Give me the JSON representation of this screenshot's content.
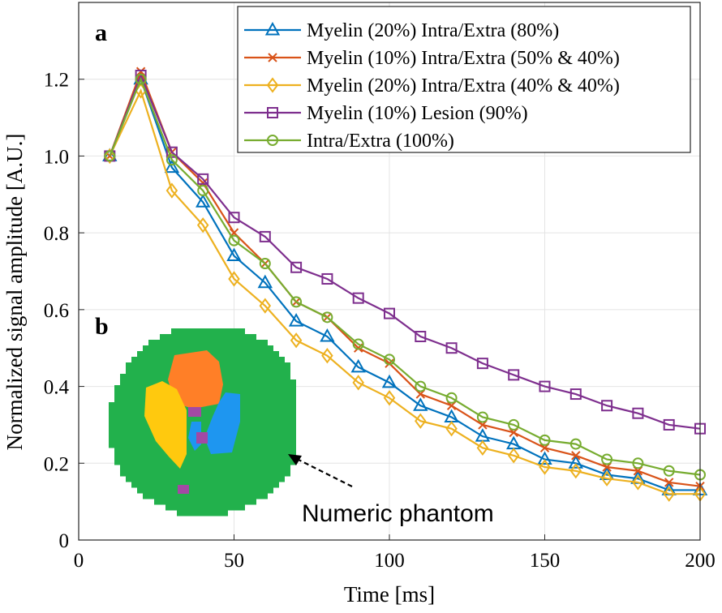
{
  "chart_data": {
    "type": "line",
    "xlabel": "Time [ms]",
    "ylabel": "Normalized signal amplitude [A.U.]",
    "xlim": [
      0,
      200
    ],
    "ylim": [
      0,
      1.4
    ],
    "xticks": [
      0,
      50,
      100,
      150,
      200
    ],
    "xtick_labels": [
      "0",
      "50",
      "100",
      "150",
      "200"
    ],
    "yticks": [
      0,
      0.2,
      0.4,
      0.6,
      0.8,
      1.0,
      1.2
    ],
    "ytick_labels": [
      "0",
      "0.2",
      "0.4",
      "0.6",
      "0.8",
      "1.0",
      "1.2"
    ],
    "grid": true,
    "legend_position": "top-right",
    "x": [
      10,
      20,
      30,
      40,
      50,
      60,
      70,
      80,
      90,
      100,
      110,
      120,
      130,
      140,
      150,
      160,
      170,
      180,
      190,
      200
    ],
    "series": [
      {
        "name": "Myelin (20%) Intra/Extra (80%)",
        "color": "#0072BD",
        "marker": "triangle",
        "values": [
          1.0,
          1.2,
          0.97,
          0.88,
          0.74,
          0.67,
          0.57,
          0.53,
          0.45,
          0.41,
          0.35,
          0.32,
          0.27,
          0.25,
          0.21,
          0.2,
          0.17,
          0.16,
          0.13,
          0.13
        ]
      },
      {
        "name": "Myelin (10%) Intra/Extra (50% & 40%)",
        "color": "#D95319",
        "marker": "x",
        "values": [
          1.0,
          1.22,
          1.01,
          0.93,
          0.8,
          0.72,
          0.62,
          0.58,
          0.5,
          0.46,
          0.38,
          0.35,
          0.3,
          0.28,
          0.24,
          0.22,
          0.19,
          0.18,
          0.15,
          0.14
        ]
      },
      {
        "name": "Myelin (20%) Intra/Extra (40% & 40%)",
        "color": "#EDB120",
        "marker": "diamond",
        "values": [
          1.0,
          1.17,
          0.91,
          0.82,
          0.68,
          0.61,
          0.52,
          0.48,
          0.41,
          0.37,
          0.31,
          0.29,
          0.24,
          0.22,
          0.19,
          0.18,
          0.16,
          0.15,
          0.12,
          0.12
        ]
      },
      {
        "name": "Myelin (10%) Lesion (90%)",
        "color": "#7E2F8E",
        "marker": "square",
        "values": [
          1.0,
          1.21,
          1.01,
          0.94,
          0.84,
          0.79,
          0.71,
          0.68,
          0.63,
          0.59,
          0.53,
          0.5,
          0.46,
          0.43,
          0.4,
          0.38,
          0.35,
          0.33,
          0.3,
          0.29
        ]
      },
      {
        "name": "Intra/Extra (100%)",
        "color": "#77AC30",
        "marker": "circle",
        "values": [
          1.0,
          1.2,
          0.99,
          0.91,
          0.78,
          0.72,
          0.62,
          0.58,
          0.51,
          0.47,
          0.4,
          0.37,
          0.32,
          0.3,
          0.26,
          0.25,
          0.21,
          0.2,
          0.18,
          0.17
        ]
      }
    ],
    "panel_labels": [
      "a",
      "b"
    ],
    "annotation": "Numeric phantom"
  },
  "phantom": {
    "name": "Numeric phantom",
    "colors": {
      "background_tissue": "#22b14c",
      "lesion_orange": "#ff7f27",
      "region_yellow": "#ffc90e",
      "region_blue": "#1e96f0",
      "spot_purple": "#a349a4"
    }
  }
}
